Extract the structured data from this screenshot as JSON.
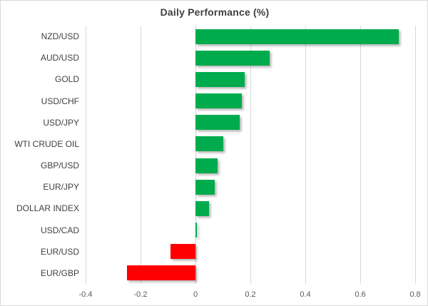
{
  "chart_data": {
    "type": "bar",
    "orientation": "horizontal",
    "title": "Daily Performance (%)",
    "xlabel": "",
    "ylabel": "",
    "categories": [
      "NZD/USD",
      "AUD/USD",
      "GOLD",
      "USD/CHF",
      "USD/JPY",
      "WTI CRUDE OIL",
      "GBP/USD",
      "EUR/JPY",
      "DOLLAR INDEX",
      "USD/CAD",
      "EUR/USD",
      "EUR/GBP"
    ],
    "values": [
      0.74,
      0.27,
      0.18,
      0.17,
      0.16,
      0.1,
      0.08,
      0.07,
      0.05,
      0.005,
      -0.09,
      -0.25
    ],
    "xlim": [
      -0.4,
      0.8
    ],
    "xticks": [
      -0.4,
      -0.2,
      0,
      0.2,
      0.4,
      0.6,
      0.8
    ],
    "xtick_labels": [
      "-0.4",
      "-0.2",
      "0",
      "0.2",
      "0.4",
      "0.6",
      "0.8"
    ],
    "grid": true,
    "legend": "none",
    "colors": {
      "positive": "#00ab4e",
      "negative": "#ff0000",
      "gridline": "#d9d9d9",
      "zero_line": "#d0d0d0",
      "title_text": "#3f3f3f",
      "category_text": "#404040",
      "tick_text": "#595959",
      "border": "#d9d9d9",
      "background": "#ffffff"
    }
  }
}
